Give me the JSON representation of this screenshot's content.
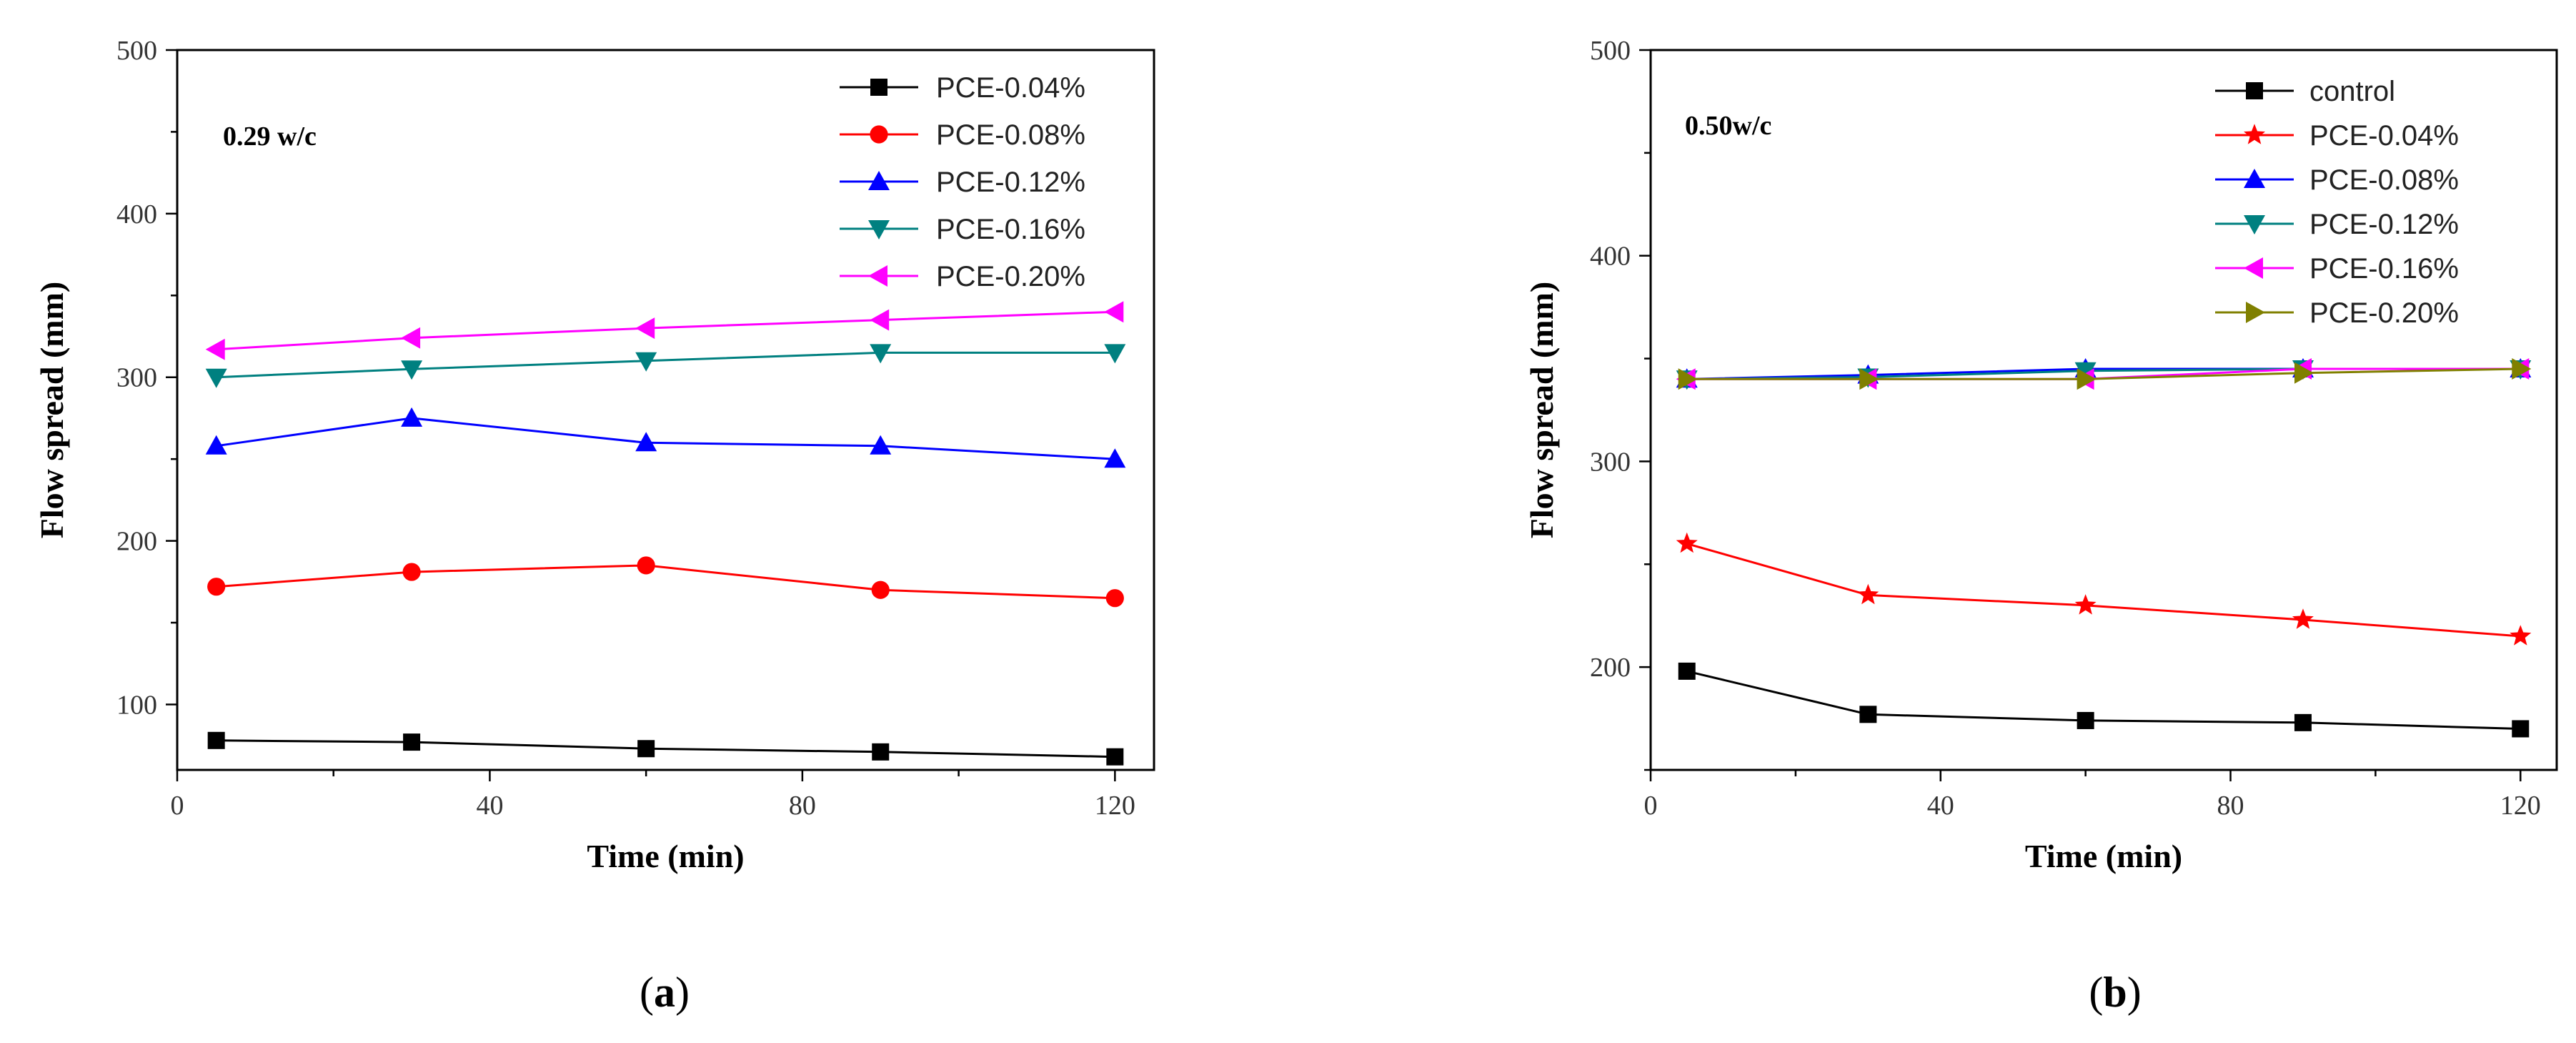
{
  "chart_data": [
    {
      "type": "line",
      "panel_label": "a",
      "annotation": "0.29 w/c",
      "xlabel": "Time (min)",
      "ylabel": "Flow spread (mm)",
      "xlim": [
        0,
        125
      ],
      "ylim": [
        60,
        500
      ],
      "x_ticks": [
        0,
        40,
        80,
        120
      ],
      "y_ticks": [
        100,
        200,
        300,
        400,
        500
      ],
      "legend_position": "top-right",
      "x": [
        5,
        30,
        60,
        90,
        120
      ],
      "series": [
        {
          "name": "PCE-0.04%",
          "color": "#000000",
          "marker": "square",
          "values": [
            78,
            77,
            73,
            71,
            68
          ]
        },
        {
          "name": "PCE-0.08%",
          "color": "#ff0000",
          "marker": "circle",
          "values": [
            172,
            181,
            185,
            170,
            165
          ]
        },
        {
          "name": "PCE-0.12%",
          "color": "#0000ff",
          "marker": "triangle-up",
          "values": [
            258,
            275,
            260,
            258,
            250
          ]
        },
        {
          "name": "PCE-0.16%",
          "color": "#008080",
          "marker": "triangle-down",
          "values": [
            300,
            305,
            310,
            315,
            315
          ]
        },
        {
          "name": "PCE-0.20%",
          "color": "#ff00ff",
          "marker": "triangle-left",
          "values": [
            317,
            324,
            330,
            335,
            340
          ]
        }
      ]
    },
    {
      "type": "line",
      "panel_label": "b",
      "annotation": "0.50w/c",
      "xlabel": "Time (min)",
      "ylabel": "Flow spread (mm)",
      "xlim": [
        0,
        125
      ],
      "ylim": [
        150,
        500
      ],
      "x_ticks": [
        0,
        40,
        80,
        120
      ],
      "y_ticks": [
        200,
        300,
        400,
        500
      ],
      "legend_position": "top-right",
      "x": [
        5,
        30,
        60,
        90,
        120
      ],
      "series": [
        {
          "name": "control",
          "color": "#000000",
          "marker": "square",
          "values": [
            198,
            177,
            174,
            173,
            170
          ]
        },
        {
          "name": "PCE-0.04%",
          "color": "#ff0000",
          "marker": "star",
          "values": [
            260,
            235,
            230,
            223,
            215
          ]
        },
        {
          "name": "PCE-0.08%",
          "color": "#0000ff",
          "marker": "triangle-up",
          "values": [
            340,
            342,
            345,
            345,
            345
          ]
        },
        {
          "name": "PCE-0.12%",
          "color": "#008080",
          "marker": "triangle-down",
          "values": [
            340,
            341,
            344,
            345,
            345
          ]
        },
        {
          "name": "PCE-0.16%",
          "color": "#ff00ff",
          "marker": "triangle-left",
          "values": [
            340,
            340,
            340,
            345,
            345
          ]
        },
        {
          "name": "PCE-0.20%",
          "color": "#808000",
          "marker": "triangle-right",
          "values": [
            340,
            340,
            340,
            343,
            345
          ]
        }
      ]
    }
  ]
}
